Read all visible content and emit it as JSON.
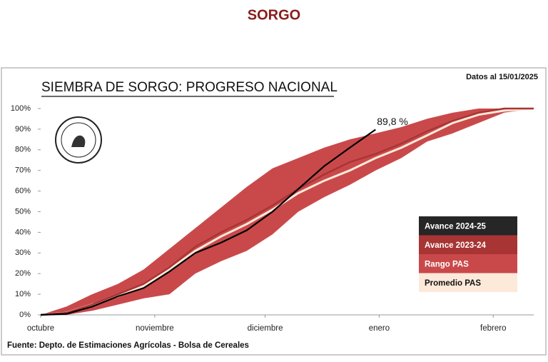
{
  "header": {
    "title": "SORGO"
  },
  "chart_data": {
    "type": "line",
    "title": "SIEMBRA DE SORGO: PROGRESO NACIONAL",
    "subtitle": "Datos al 15/01/2025",
    "source": "Fuente: Depto. de Estimaciones Agrícolas - Bolsa de Cereales",
    "annotation": "89,8 %",
    "x": [
      0,
      7,
      14,
      21,
      28,
      35,
      42,
      49,
      56,
      63,
      70,
      77,
      84,
      91,
      98,
      105,
      112,
      119,
      126,
      134
    ],
    "xlim": [
      0,
      134
    ],
    "xticks": [
      {
        "value": 0,
        "label": "octubre"
      },
      {
        "value": 31,
        "label": "noviembre"
      },
      {
        "value": 61,
        "label": "diciembre"
      },
      {
        "value": 92,
        "label": "enero"
      },
      {
        "value": 123,
        "label": "febrero"
      }
    ],
    "ylim": [
      0,
      100
    ],
    "yticks": [
      {
        "value": 0,
        "label": "0%"
      },
      {
        "value": 10,
        "label": "10%"
      },
      {
        "value": 20,
        "label": "20%"
      },
      {
        "value": 30,
        "label": "30%"
      },
      {
        "value": 40,
        "label": "40%"
      },
      {
        "value": 50,
        "label": "50%"
      },
      {
        "value": 60,
        "label": "60%"
      },
      {
        "value": 70,
        "label": "70%"
      },
      {
        "value": 80,
        "label": "80%"
      },
      {
        "value": 90,
        "label": "90%"
      },
      {
        "value": 100,
        "label": "100%"
      }
    ],
    "grid": false,
    "legend": "lower right",
    "series": [
      {
        "name": "Avance 2024-25",
        "color": "#262626",
        "values": [
          0,
          0.5,
          4,
          9,
          13,
          21,
          30,
          35,
          41,
          50,
          61,
          72,
          81,
          89.8,
          null,
          null,
          null,
          null,
          null,
          null
        ]
      },
      {
        "name": "Avance 2023-24",
        "color": "#a83434",
        "values": [
          0,
          1,
          5,
          10,
          15,
          23,
          33,
          40,
          46,
          53,
          61,
          68,
          74,
          78,
          83,
          89,
          94,
          98,
          100,
          100
        ]
      },
      {
        "name": "Rango PAS",
        "color": "#c9494b",
        "values": [
          0,
          4,
          10,
          15,
          22,
          32,
          42,
          52,
          62,
          71,
          76,
          81,
          85,
          88,
          91,
          95,
          98,
          100,
          100,
          100
        ],
        "low": [
          0,
          0,
          2,
          5,
          8,
          10,
          20,
          26,
          31,
          39,
          50,
          57,
          63,
          70,
          76,
          84,
          88,
          93,
          98,
          100
        ]
      },
      {
        "name": "Promedio PAS",
        "color": "#fde9da",
        "values": [
          0,
          1,
          5,
          9,
          14,
          22,
          31,
          38,
          44,
          51,
          59,
          65,
          70,
          76,
          81,
          87,
          93,
          97,
          99,
          100
        ]
      }
    ]
  }
}
